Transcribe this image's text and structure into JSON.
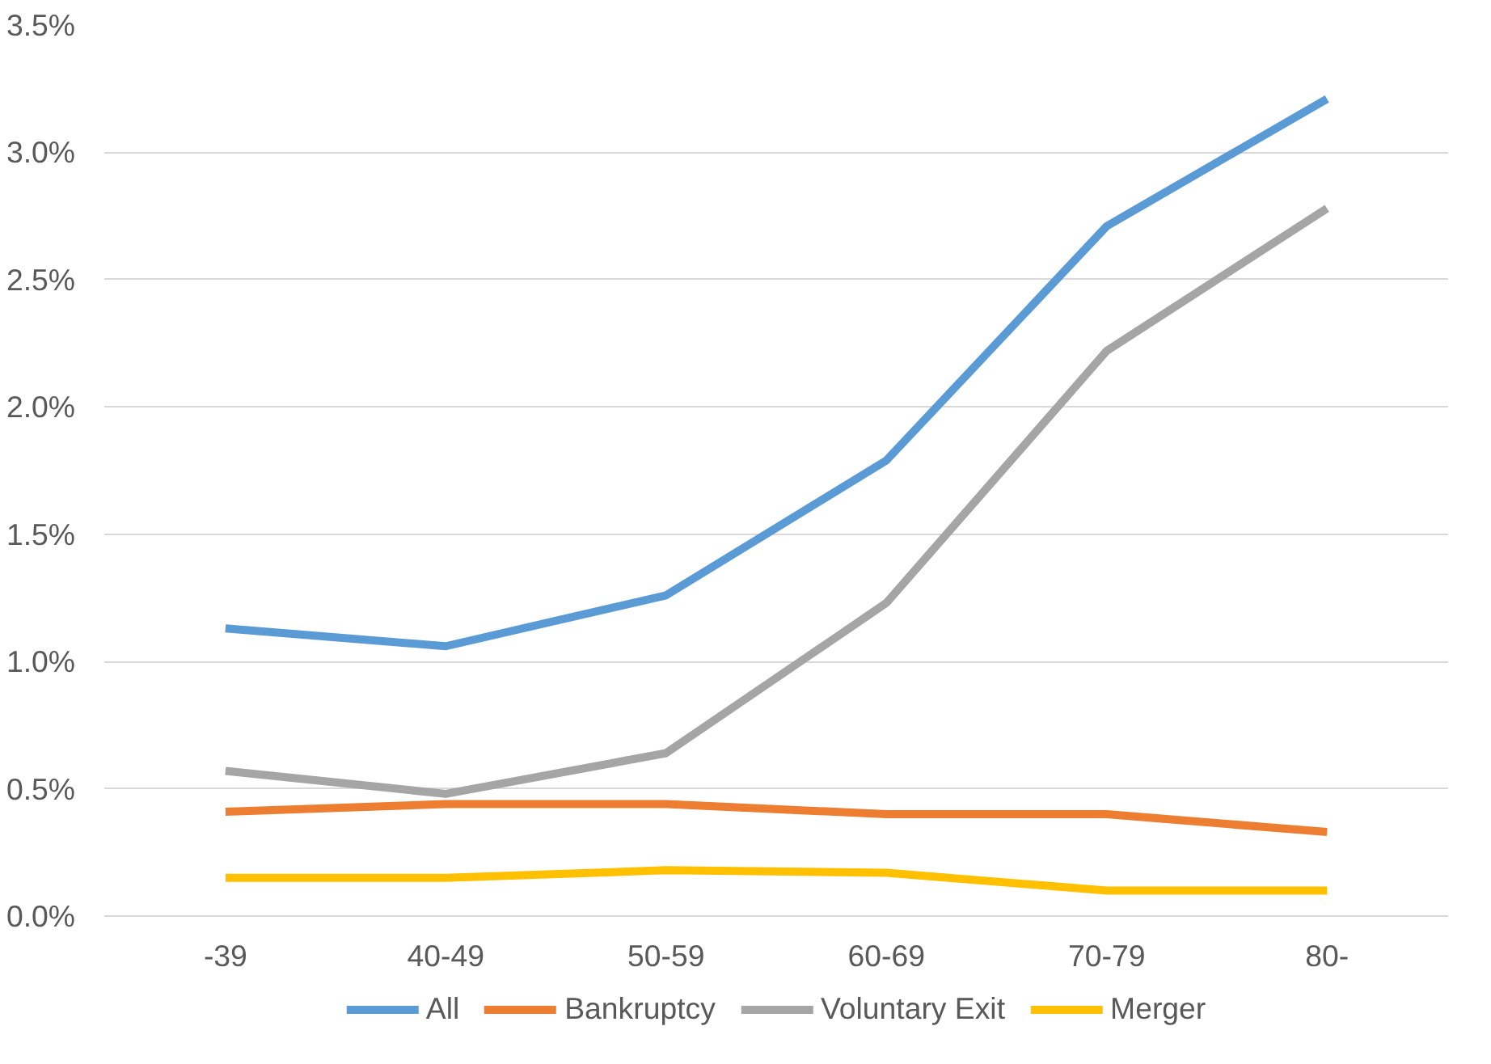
{
  "chart_data": {
    "type": "line",
    "categories": [
      "-39",
      "40-49",
      "50-59",
      "60-69",
      "70-79",
      "80-"
    ],
    "series": [
      {
        "name": "All",
        "color": "#5b9bd5",
        "values": [
          1.13,
          1.06,
          1.26,
          1.79,
          2.71,
          3.21
        ]
      },
      {
        "name": "Bankruptcy",
        "color": "#ed7d31",
        "values": [
          0.41,
          0.44,
          0.44,
          0.4,
          0.4,
          0.33
        ]
      },
      {
        "name": "Voluntary Exit",
        "color": "#a5a5a5",
        "values": [
          0.57,
          0.48,
          0.64,
          1.23,
          2.22,
          2.78
        ]
      },
      {
        "name": "Merger",
        "color": "#ffc000",
        "values": [
          0.15,
          0.15,
          0.18,
          0.17,
          0.1,
          0.1
        ]
      }
    ],
    "ylim": [
      0,
      3.5
    ],
    "yticks": [
      {
        "value": 0,
        "label": "0.0%"
      },
      {
        "value": 0.5,
        "label": "0.5%"
      },
      {
        "value": 1,
        "label": "1.0%"
      },
      {
        "value": 1.5,
        "label": "1.5%"
      },
      {
        "value": 2,
        "label": "2.0%"
      },
      {
        "value": 2.5,
        "label": "2.5%"
      },
      {
        "value": 3,
        "label": "3.0%"
      },
      {
        "value": 3.5,
        "label": "3.5%"
      }
    ],
    "grid": "y",
    "legend": "bottom",
    "marker": "none",
    "line_style": "solid"
  }
}
